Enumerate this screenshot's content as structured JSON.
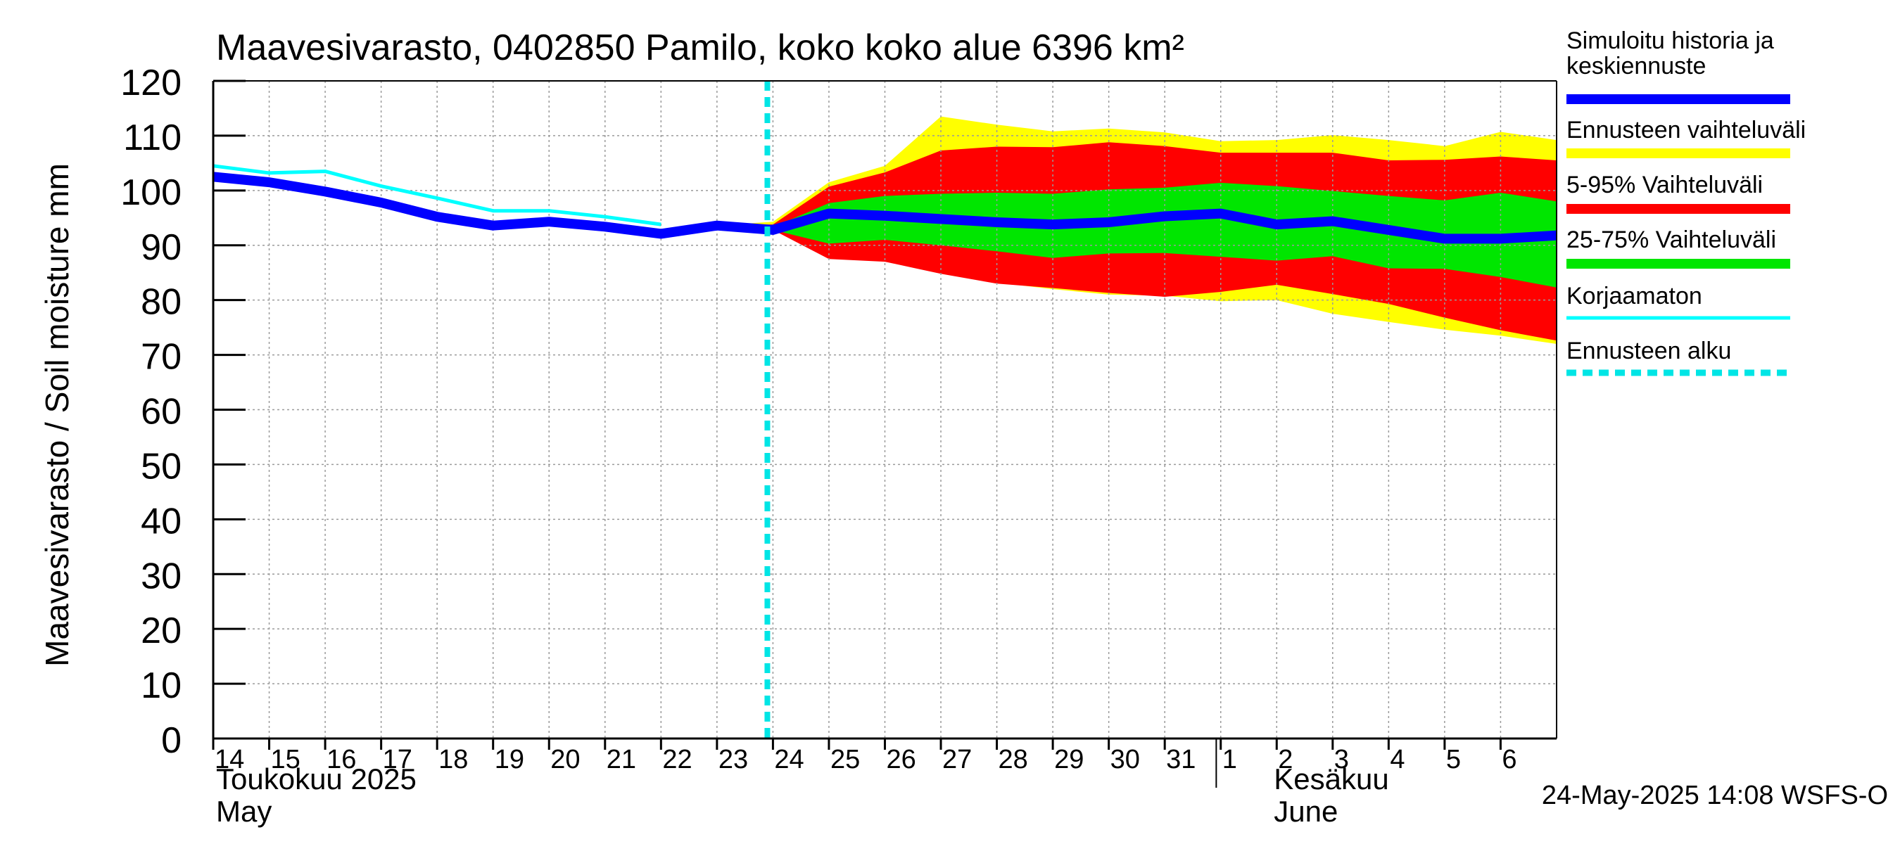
{
  "chart_data": {
    "type": "area",
    "title": "Maavesivarasto, 0402850 Pamilo, koko koko alue 6396 km²",
    "ylabel": "Maavesivarasto / Soil moisture   mm",
    "ylim": [
      0,
      120
    ],
    "yticks": [
      0,
      10,
      20,
      30,
      40,
      50,
      60,
      70,
      80,
      90,
      100,
      110,
      120
    ],
    "xlim": [
      "2025-05-14",
      "2025-06-07"
    ],
    "x_tick_labels": [
      "14",
      "15",
      "16",
      "17",
      "18",
      "19",
      "20",
      "21",
      "22",
      "23",
      "24",
      "25",
      "26",
      "27",
      "28",
      "29",
      "30",
      "31",
      "1",
      "2",
      "3",
      "4",
      "5",
      "6"
    ],
    "month_labels": [
      {
        "line1": "Toukokuu  2025",
        "line2": "May",
        "start": "2025-05-14"
      },
      {
        "line1": "Kesäkuu",
        "line2": "June",
        "start": "2025-06-02"
      }
    ],
    "forecast_start": "2025-05-24",
    "grid": true,
    "legend_position": "right",
    "timestamp": "24-May-2025 14:08 WSFS-O",
    "colors": {
      "simulated": "#0000ff",
      "range_total": "#ffff00",
      "range_5_95": "#ff0000",
      "range_25_75": "#00e600",
      "uncorrected": "#00ffff",
      "forecast_start": "#00e5e5",
      "grid": "#9a9a9a"
    },
    "series": [
      {
        "name": "Simuloitu historia ja keskiennuste",
        "x": [
          "2025-05-14",
          "2025-05-15",
          "2025-05-16",
          "2025-05-17",
          "2025-05-18",
          "2025-05-19",
          "2025-05-20",
          "2025-05-21",
          "2025-05-22",
          "2025-05-23",
          "2025-05-24",
          "2025-05-25",
          "2025-05-26",
          "2025-05-27",
          "2025-05-28",
          "2025-05-29",
          "2025-05-30",
          "2025-05-31",
          "2025-06-01",
          "2025-06-02",
          "2025-06-03",
          "2025-06-04",
          "2025-06-05",
          "2025-06-06",
          "2025-06-07"
        ],
        "values": [
          102.5,
          101.5,
          99.8,
          97.8,
          95.2,
          93.6,
          94.3,
          93.4,
          92.1,
          93.6,
          92.8,
          95.8,
          95.4,
          94.8,
          94.2,
          93.8,
          94.2,
          95.3,
          95.8,
          93.8,
          94.4,
          92.8,
          91.2,
          91.2,
          91.8
        ]
      },
      {
        "name": "Korjaamaton",
        "x": [
          "2025-05-14",
          "2025-05-15",
          "2025-05-16",
          "2025-05-17",
          "2025-05-18",
          "2025-05-19",
          "2025-05-20",
          "2025-05-21",
          "2025-05-22"
        ],
        "values": [
          104.5,
          103.2,
          103.5,
          100.8,
          98.6,
          96.3,
          96.3,
          95.2,
          93.8
        ]
      },
      {
        "name": "Ennusteen vaihteluväli",
        "x": [
          "2025-05-23",
          "2025-05-24",
          "2025-05-25",
          "2025-05-26",
          "2025-05-27",
          "2025-05-28",
          "2025-05-29",
          "2025-05-30",
          "2025-05-31",
          "2025-06-01",
          "2025-06-02",
          "2025-06-03",
          "2025-06-04",
          "2025-06-05",
          "2025-06-06",
          "2025-06-07"
        ],
        "lower": [
          93.6,
          92.8,
          88.5,
          87.8,
          85.0,
          83.2,
          82.0,
          81.0,
          80.8,
          79.8,
          80.0,
          77.5,
          76.0,
          74.6,
          73.5,
          72.0
        ],
        "upper": [
          93.6,
          94.3,
          101.5,
          104.5,
          113.5,
          112.0,
          110.8,
          111.3,
          110.6,
          109.0,
          109.2,
          110.1,
          109.2,
          108.1,
          110.7,
          109.2
        ]
      },
      {
        "name": "5-95% Vaihteluväli",
        "x": [
          "2025-05-23",
          "2025-05-24",
          "2025-05-25",
          "2025-05-26",
          "2025-05-27",
          "2025-05-28",
          "2025-05-29",
          "2025-05-30",
          "2025-05-31",
          "2025-06-01",
          "2025-06-02",
          "2025-06-03",
          "2025-06-04",
          "2025-06-05",
          "2025-06-06",
          "2025-06-07"
        ],
        "lower": [
          93.6,
          92.8,
          87.5,
          87.0,
          84.8,
          83.0,
          82.2,
          81.3,
          80.6,
          81.5,
          82.8,
          81.1,
          79.3,
          76.8,
          74.5,
          72.6
        ],
        "upper": [
          93.6,
          93.8,
          100.7,
          103.3,
          107.3,
          108.0,
          107.9,
          108.8,
          108.1,
          106.9,
          106.9,
          106.9,
          105.5,
          105.6,
          106.2,
          105.5
        ]
      },
      {
        "name": "25-75% Vaihteluväli",
        "x": [
          "2025-05-23",
          "2025-05-24",
          "2025-05-25",
          "2025-05-26",
          "2025-05-27",
          "2025-05-28",
          "2025-05-29",
          "2025-05-30",
          "2025-05-31",
          "2025-06-01",
          "2025-06-02",
          "2025-06-03",
          "2025-06-04",
          "2025-06-05",
          "2025-06-06",
          "2025-06-07"
        ],
        "lower": [
          93.6,
          92.8,
          90.3,
          91.0,
          90.0,
          88.9,
          87.7,
          88.5,
          88.6,
          87.9,
          87.2,
          88.0,
          85.8,
          85.7,
          84.2,
          82.3
        ],
        "upper": [
          93.6,
          93.3,
          97.7,
          99.0,
          99.4,
          99.6,
          99.4,
          100.2,
          100.5,
          101.4,
          100.8,
          99.9,
          99.0,
          98.2,
          99.6,
          98.0
        ]
      }
    ],
    "legend": [
      {
        "label": "Simuloitu historia ja keskiennuste",
        "color": "#0000ff",
        "style": "thick-line"
      },
      {
        "label": "Ennusteen vaihteluväli",
        "color": "#ffff00",
        "style": "thick-line"
      },
      {
        "label": "5-95% Vaihteluväli",
        "color": "#ff0000",
        "style": "thick-line"
      },
      {
        "label": "25-75% Vaihteluväli",
        "color": "#00e600",
        "style": "thick-line"
      },
      {
        "label": "Korjaamaton",
        "color": "#00ffff",
        "style": "thin-line"
      },
      {
        "label": "Ennusteen alku",
        "color": "#00e5e5",
        "style": "dashed-line"
      }
    ]
  }
}
